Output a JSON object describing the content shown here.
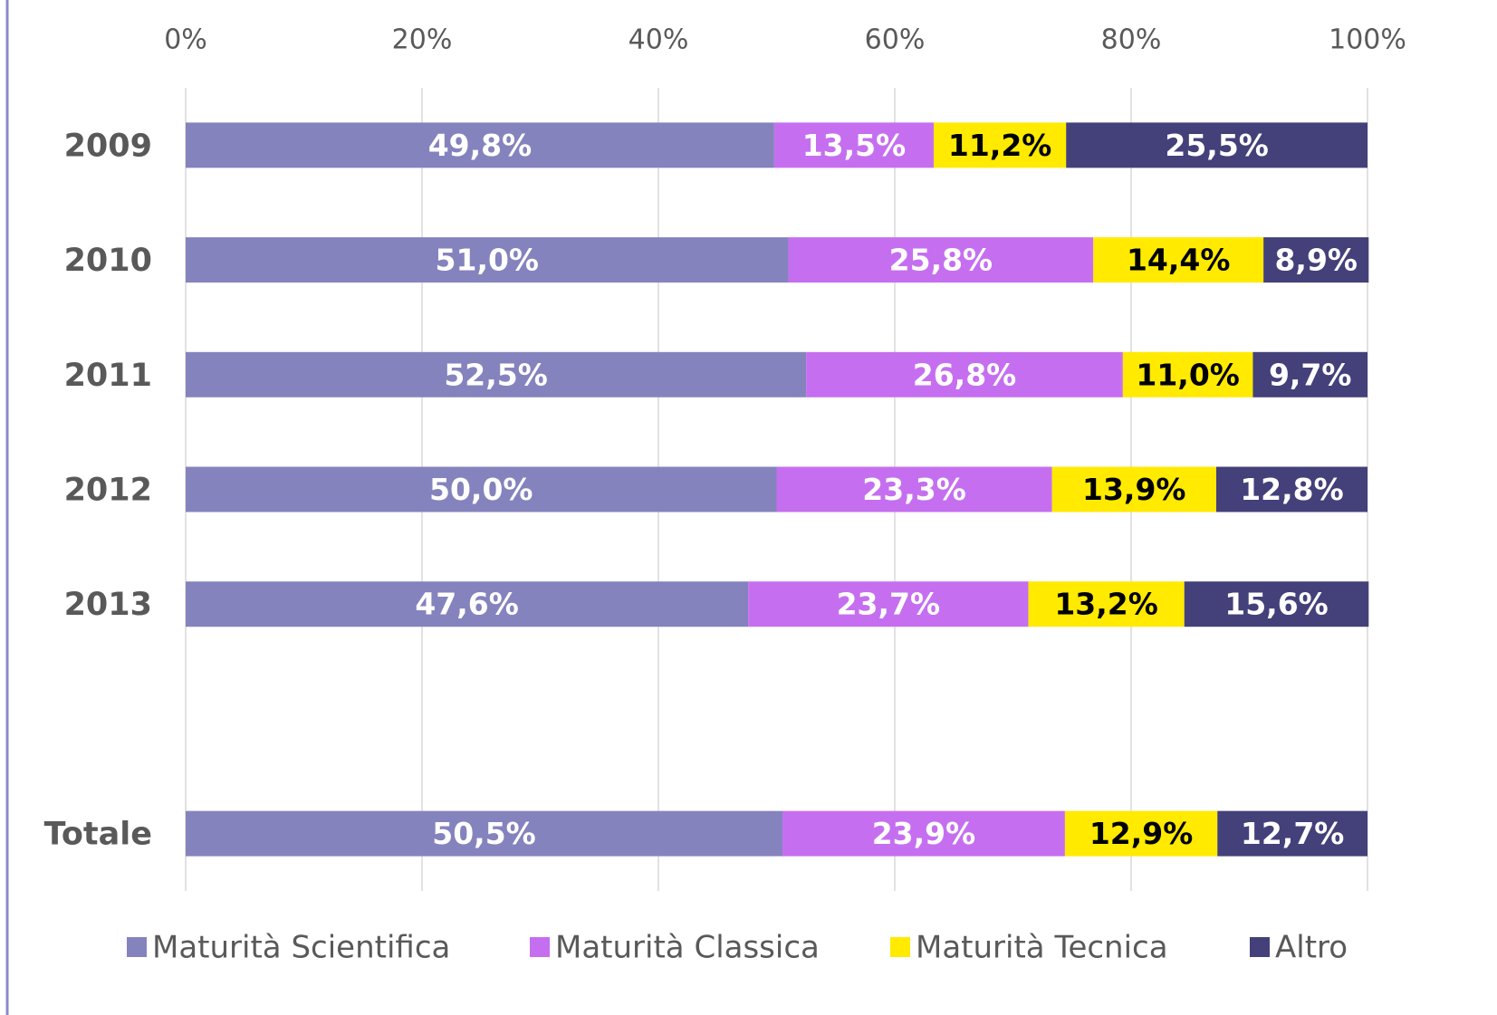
{
  "chart_data": {
    "type": "stacked_barh",
    "categories": [
      "2009",
      "2010",
      "2011",
      "2012",
      "2013",
      null,
      "Totale"
    ],
    "series": [
      {
        "name": "Maturità Scientifica",
        "color": "#8583bd",
        "label_color": "#ffffff",
        "values": [
          49.8,
          51.0,
          52.5,
          50.0,
          47.6,
          null,
          50.5
        ],
        "value_labels": [
          "49,8%",
          "51,0%",
          "52,5%",
          "50,0%",
          "47,6%",
          null,
          "50,5%"
        ]
      },
      {
        "name": "Maturità Classica",
        "color": "#c56ff0",
        "label_color": "#ffffff",
        "values": [
          13.5,
          25.8,
          26.8,
          23.3,
          23.7,
          null,
          23.9
        ],
        "value_labels": [
          "13,5%",
          "25,8%",
          "26,8%",
          "23,3%",
          "23,7%",
          null,
          "23,9%"
        ]
      },
      {
        "name": "Maturità Tecnica",
        "color": "#ffea00",
        "label_color": "#000000",
        "values": [
          11.2,
          14.4,
          11.0,
          13.9,
          13.2,
          null,
          12.9
        ],
        "value_labels": [
          "11,2%",
          "14,4%",
          "11,0%",
          "13,9%",
          "13,2%",
          null,
          "12,9%"
        ]
      },
      {
        "name": "Altro",
        "color": "#43407a",
        "label_color": "#ffffff",
        "values": [
          25.5,
          8.9,
          9.7,
          12.8,
          15.6,
          null,
          12.7
        ],
        "value_labels": [
          "25,5%",
          "8,9%",
          "9,7%",
          "12,8%",
          "15,6%",
          null,
          "12,7%"
        ]
      }
    ],
    "xlim": [
      0,
      100
    ],
    "xticks": [
      {
        "value": 0,
        "label": "0%"
      },
      {
        "value": 20,
        "label": "20%"
      },
      {
        "value": 40,
        "label": "40%"
      },
      {
        "value": 60,
        "label": "60%"
      },
      {
        "value": 80,
        "label": "80%"
      },
      {
        "value": 100,
        "label": "100%"
      }
    ],
    "grid": true,
    "legend": "bottom"
  }
}
